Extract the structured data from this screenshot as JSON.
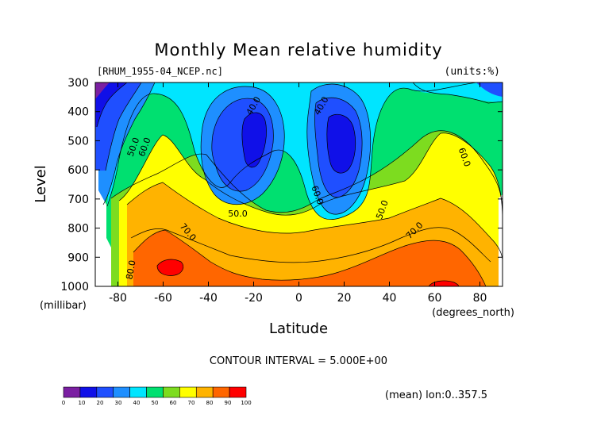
{
  "chart_data": {
    "type": "heatmap",
    "title": "Monthly Mean relative humidity",
    "file_label": "[RHUM_1955-04_NCEP.nc]",
    "units_label": "(units:%)",
    "xlabel": "Latitude",
    "xunit_label": "(degrees_north)",
    "ylabel": "Level",
    "yunit_label": "(millibar)",
    "xlim": [
      -90,
      90
    ],
    "ylim": [
      1000,
      300
    ],
    "x_ticks": [
      -80,
      -60,
      -40,
      -20,
      0,
      20,
      40,
      60,
      80
    ],
    "y_ticks": [
      300,
      400,
      500,
      600,
      700,
      800,
      900,
      1000
    ],
    "contour_interval_text": "CONTOUR INTERVAL = 5.000E+00",
    "footer_text": "(mean) lon:0..357.5",
    "colorbar": {
      "ticks": [
        0,
        10,
        20,
        30,
        40,
        50,
        60,
        70,
        80,
        90,
        100
      ],
      "colors": [
        "#7b1fa2",
        "#1010e8",
        "#1f4fff",
        "#1e8fff",
        "#00e5ff",
        "#00e070",
        "#7ddc1f",
        "#ffff00",
        "#ffb300",
        "#ff6600",
        "#ff0000"
      ]
    },
    "contour_labels": [
      {
        "text": "40.0",
        "lat": -19,
        "lev": 385,
        "rot": -60
      },
      {
        "text": "40.0",
        "lat": 11,
        "lev": 385,
        "rot": -60
      },
      {
        "text": "50.0",
        "lat": -72,
        "lev": 525,
        "rot": -70
      },
      {
        "text": "60.0",
        "lat": -67,
        "lev": 525,
        "rot": -70
      },
      {
        "text": "50.0",
        "lat": -27,
        "lev": 760,
        "rot": 0
      },
      {
        "text": "60.0",
        "lat": 7,
        "lev": 690,
        "rot": 70
      },
      {
        "text": "50.0",
        "lat": 38,
        "lev": 740,
        "rot": -70
      },
      {
        "text": "60.0",
        "lat": 72,
        "lev": 560,
        "rot": 70
      },
      {
        "text": "70.0",
        "lat": -50,
        "lev": 820,
        "rot": 50
      },
      {
        "text": "70.0",
        "lat": 52,
        "lev": 815,
        "rot": -45
      },
      {
        "text": "80.0",
        "lat": -73,
        "lev": 945,
        "rot": -80
      }
    ]
  }
}
